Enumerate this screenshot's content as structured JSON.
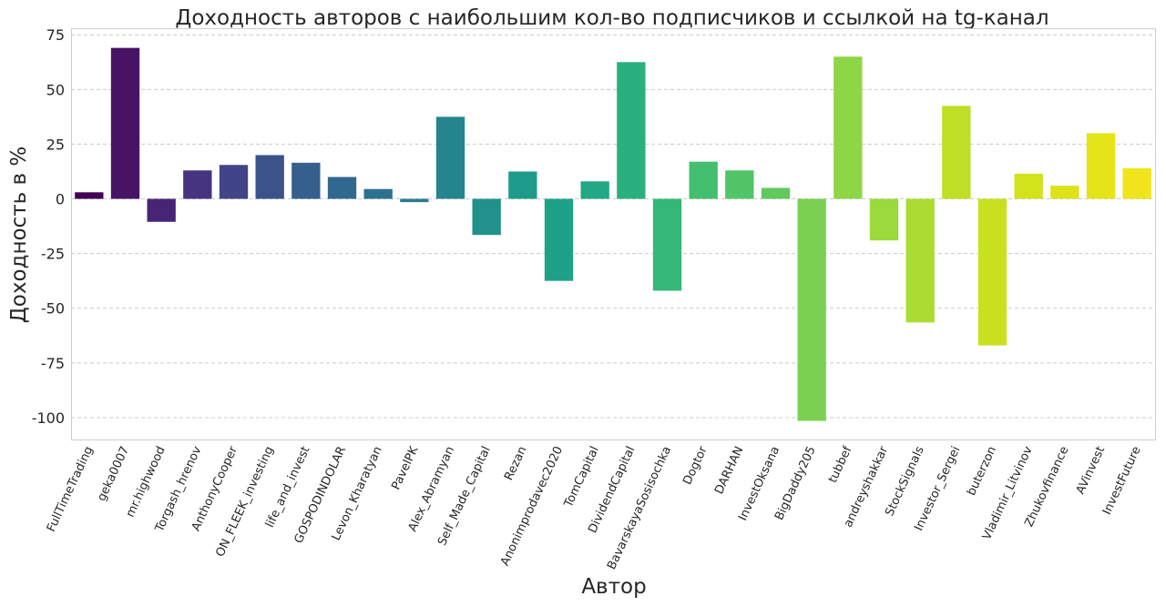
{
  "chart_data": {
    "type": "bar",
    "title": "Доходность авторов с наибольшим кол-во подписчиков и ссылкой на tg-канал",
    "xlabel": "Автор",
    "ylabel": "Доходность в %",
    "ylim": [
      -110,
      78
    ],
    "yticks": [
      75,
      50,
      25,
      0,
      -25,
      -50,
      -75,
      -100
    ],
    "ytick_labels": [
      "75",
      "50",
      "25",
      "0",
      "-25",
      "-50",
      "-75",
      "-100"
    ],
    "grid": true,
    "categories": [
      "FullTimeTrading",
      "geka0007",
      "mr.highwood",
      "Torgash_hrenov",
      "AnthonyCooper",
      "ON_FLEEK_investing",
      "life_and_invest",
      "GOSPODINDOLAR",
      "Levon_Kharatyan",
      "PavelPK",
      "Alex_Abramyan",
      "Self_Made_Capital",
      "Rezan",
      "Anonimprodavec2020",
      "TomCapital",
      "DividendCapital",
      "BavarskayaSosisochka",
      "Dogtor",
      "DARHAN",
      "InvestOksana",
      "BigDaddy205",
      "tubbef",
      "andreyshakkar",
      "StockSignals",
      "Investor_Sergei",
      "buterzon",
      "Vladimir_Litvinov",
      "Zhukovfinance",
      "AVinvest",
      "InvestFuture"
    ],
    "values": [
      3,
      69,
      -10.5,
      13,
      15.5,
      20,
      16.5,
      10,
      4.5,
      -1.5,
      37.5,
      -16.5,
      12.5,
      -37.5,
      8,
      62.5,
      -42,
      17,
      13,
      5,
      -101.5,
      65,
      -19,
      -56.5,
      42.5,
      -67,
      11.5,
      6,
      30,
      14
    ],
    "colors": [
      "#440154",
      "#471365",
      "#482475",
      "#463480",
      "#414487",
      "#3b528b",
      "#355f8d",
      "#31688e",
      "#2c728e",
      "#287d8e",
      "#25858e",
      "#21918c",
      "#1e9b8a",
      "#1fa088",
      "#22a884",
      "#2ab07f",
      "#35b779",
      "#44bf70",
      "#52c569",
      "#61c95e",
      "#7ad151",
      "#8ed645",
      "#9bd93c",
      "#aadc32",
      "#bddf26",
      "#c9e020",
      "#d2e21b",
      "#dde318",
      "#e5e419",
      "#f0e51c"
    ]
  }
}
